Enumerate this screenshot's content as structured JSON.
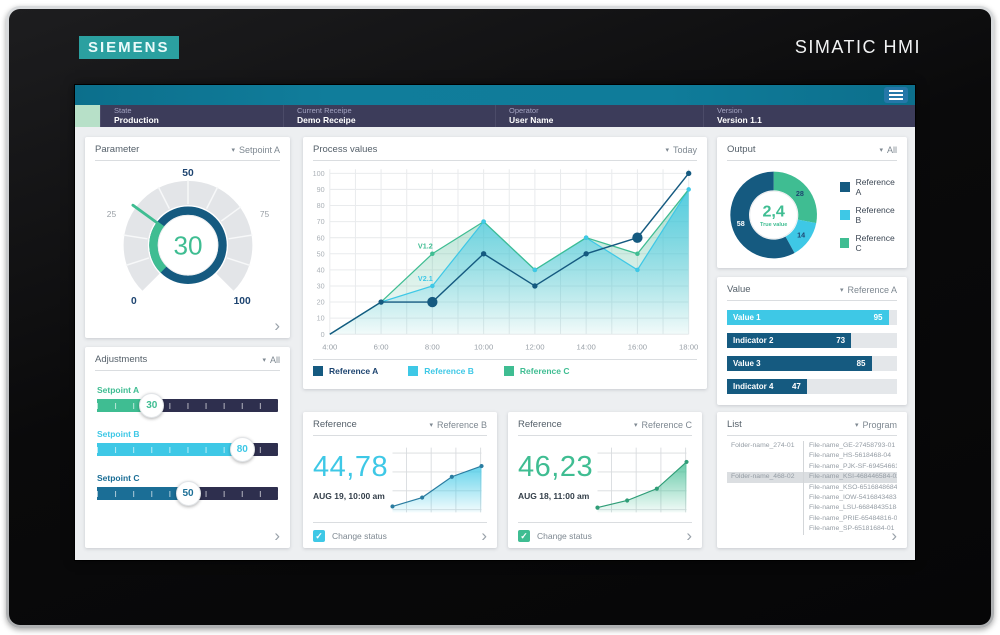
{
  "device": {
    "brand": "SIEMENS",
    "product": "SIMATIC HMI"
  },
  "colors": {
    "navy": "#155a80",
    "cyan": "#3ec8e6",
    "green": "#3fbd92",
    "gauge_label_dark": "#1d4470",
    "gauge_label_gray": "#9aa0a6",
    "spark_dot_b": "#2a7ca0",
    "spark_dot_c": "#2f9d77",
    "topbar": "#0f7c9a",
    "statusbar": "#3c3c5a",
    "status_square": "#b7e0c8"
  },
  "status_fields": [
    {
      "label": "State",
      "value": "Production"
    },
    {
      "label": "Current Receipe",
      "value": "Demo Receipe"
    },
    {
      "label": "Operator",
      "value": "User Name"
    },
    {
      "label": "Version",
      "value": "Version 1.1"
    }
  ],
  "parameter": {
    "title": "Parameter",
    "dropdown": "Setpoint A",
    "gauge": {
      "value": 30,
      "min": 0,
      "max": 100,
      "tick_labels": [
        0,
        25,
        50,
        75,
        100
      ],
      "value_color": "#3fbd92",
      "ring_color": "#155a80"
    }
  },
  "adjustments": {
    "title": "Adjustments",
    "dropdown": "All",
    "sliders": [
      {
        "label": "Setpoint A",
        "value": 30,
        "max": 100,
        "color": "#3fbd92"
      },
      {
        "label": "Setpoint B",
        "value": 80,
        "max": 100,
        "color": "#3ec8e6"
      },
      {
        "label": "Setpoint C",
        "value": 50,
        "max": 100,
        "color": "#1b6e96"
      }
    ]
  },
  "process_values": {
    "title": "Process values",
    "dropdown": "Today",
    "chart_data": {
      "type": "line",
      "x": [
        "4:00",
        "6:00",
        "8:00",
        "10:00",
        "12:00",
        "14:00",
        "16:00",
        "18:00"
      ],
      "ylim": [
        0,
        100
      ],
      "yticks": [
        0,
        10,
        20,
        30,
        40,
        50,
        60,
        70,
        80,
        90,
        100
      ],
      "grid": "hourly vertical + 10-step horizontal",
      "legend_position": "bottom",
      "series": [
        {
          "name": "Reference A",
          "kind": "line",
          "color": "#155a80",
          "values": [
            0,
            20,
            20,
            50,
            30,
            50,
            60,
            100
          ],
          "emphasis_points": [
            2,
            6
          ]
        },
        {
          "name": "Reference B",
          "kind": "area",
          "color": "#3ec8e6",
          "values": [
            0,
            20,
            30,
            70,
            40,
            60,
            40,
            90
          ],
          "annotation": "V2.1",
          "annotation_index": 2
        },
        {
          "name": "Reference C",
          "kind": "area",
          "color": "#3fbd92",
          "values": [
            0,
            20,
            50,
            70,
            40,
            60,
            50,
            90
          ],
          "annotation": "V1.2",
          "annotation_index": 2
        }
      ]
    }
  },
  "output": {
    "title": "Output",
    "dropdown": "All",
    "chart_data": {
      "type": "pie",
      "center_value": "2,4",
      "center_label": "True value",
      "segments": [
        {
          "name": "Reference C",
          "value": 28,
          "color": "#3fbd92",
          "label_color": "#1d4470"
        },
        {
          "name": "Reference B",
          "value": 14,
          "color": "#3ec8e6",
          "label_color": "#1d4470"
        },
        {
          "name": "Reference A",
          "value": 58,
          "color": "#155a80",
          "label_color": "#ffffff"
        }
      ],
      "legend": [
        "Reference A",
        "Reference B",
        "Reference C"
      ],
      "legend_colors": [
        "#155a80",
        "#3ec8e6",
        "#3fbd92"
      ]
    }
  },
  "value": {
    "title": "Value",
    "dropdown": "Reference A",
    "max": 100,
    "bars": [
      {
        "label": "Value 1",
        "value": 95,
        "color": "#3ec8e6"
      },
      {
        "label": "Indicator 2",
        "value": 73,
        "color": "#155a80"
      },
      {
        "label": "Value 3",
        "value": 85,
        "color": "#155a80"
      },
      {
        "label": "Indicator 4",
        "value": 47,
        "color": "#155a80"
      }
    ]
  },
  "reference_b": {
    "title": "Reference",
    "dropdown": "Reference B",
    "value": "44,78",
    "timestamp": "AUG 19, 10:00 am",
    "checkbox_label": "Change status",
    "checked": true,
    "color": "#3ec8e6",
    "spark": [
      10,
      25,
      60,
      78
    ]
  },
  "reference_c": {
    "title": "Reference",
    "dropdown": "Reference C",
    "value": "46,23",
    "timestamp": "AUG 18, 11:00 am",
    "checkbox_label": "Change status",
    "checked": true,
    "color": "#3fbd92",
    "spark": [
      8,
      20,
      40,
      85
    ]
  },
  "list": {
    "title": "List",
    "dropdown": "Program",
    "rows": [
      {
        "folder": "Folder-name_274-01",
        "file": "File-name_GE-27458793-01",
        "highlight": false
      },
      {
        "folder": "",
        "file": "File-name_HS-5618468-04",
        "highlight": false
      },
      {
        "folder": "",
        "file": "File-name_PJK-SF-694546618-01",
        "highlight": false
      },
      {
        "folder": "Folder-name_468-02",
        "file": "File-name_KSI-468446584-02",
        "highlight": true
      },
      {
        "folder": "",
        "file": "File-name_KSO-6516848684-01",
        "highlight": false
      },
      {
        "folder": "",
        "file": "File-name_IOW-5416843483-01",
        "highlight": false
      },
      {
        "folder": "",
        "file": "File-name_LSU-6684843518-02",
        "highlight": false
      },
      {
        "folder": "",
        "file": "File-name_PRIE-65484816-03",
        "highlight": false
      },
      {
        "folder": "",
        "file": "File-name_SP-65181684-01",
        "highlight": false
      }
    ]
  }
}
